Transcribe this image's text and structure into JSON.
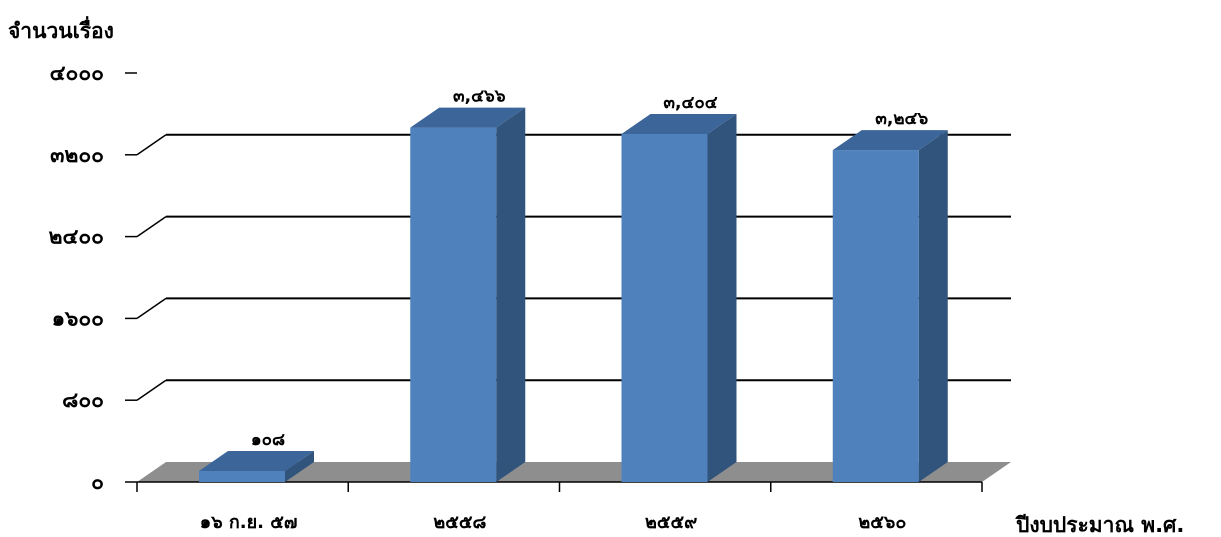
{
  "chart_data": {
    "type": "bar",
    "ylabel": "จำนวนเรื่อง",
    "xlabel": "ปีงบประมาณ พ.ศ.",
    "categories": [
      "๑๖ ก.ย. ๕๗",
      "๒๕๕๘",
      "๒๕๕๙",
      "๒๕๖๐"
    ],
    "values": [
      108,
      3466,
      3404,
      3246
    ],
    "data_labels": [
      "๑๐๘",
      "๓,๔๖๖",
      "๓,๔๐๔",
      "๓,๒๔๖"
    ],
    "ylim": [
      0,
      4000
    ],
    "yticks": [
      0,
      800,
      1600,
      2400,
      3200,
      4000
    ],
    "ytick_labels": [
      "๐",
      "๘๐๐",
      "๑๖๐๐",
      "๒๔๐๐",
      "๓๒๐๐",
      "๔๐๐๐"
    ],
    "grid": true,
    "style": "3d-column",
    "colors": {
      "bar_front": "#4F81BD",
      "bar_side": "#31547C",
      "bar_top": "#3C6599",
      "floor": "#8E8E8E",
      "grid": "#000000"
    }
  }
}
